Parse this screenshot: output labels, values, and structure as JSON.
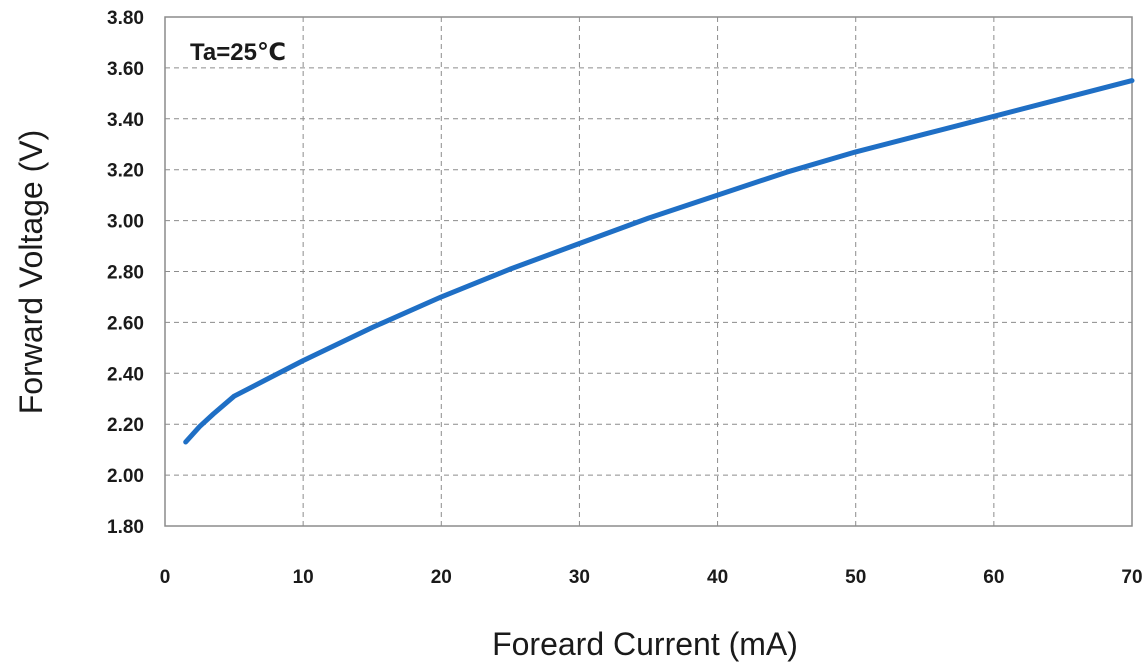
{
  "chart_data": {
    "type": "line",
    "title": "",
    "xlabel": "Foreard Current (mA)",
    "ylabel": "Forward Voltage (V)",
    "annotation": "Ta=25℃",
    "xlim": [
      0,
      70
    ],
    "ylim": [
      1.8,
      3.8
    ],
    "x_ticks": [
      "0",
      "10",
      "20",
      "30",
      "40",
      "50",
      "60",
      "70"
    ],
    "y_ticks": [
      "1.80",
      "2.00",
      "2.20",
      "2.40",
      "2.60",
      "2.80",
      "3.00",
      "3.20",
      "3.40",
      "3.60",
      "3.80"
    ],
    "grid": true,
    "line_color": "#1f6fc5",
    "series": [
      {
        "x": [
          1.5,
          2.5,
          3.5,
          5,
          7.5,
          10,
          15,
          20,
          25,
          30,
          35,
          40,
          45,
          50,
          55,
          60,
          65,
          70
        ],
        "y": [
          2.13,
          2.19,
          2.24,
          2.31,
          2.38,
          2.45,
          2.58,
          2.7,
          2.81,
          2.91,
          3.01,
          3.1,
          3.19,
          3.27,
          3.34,
          3.41,
          3.48,
          3.55
        ]
      }
    ]
  }
}
